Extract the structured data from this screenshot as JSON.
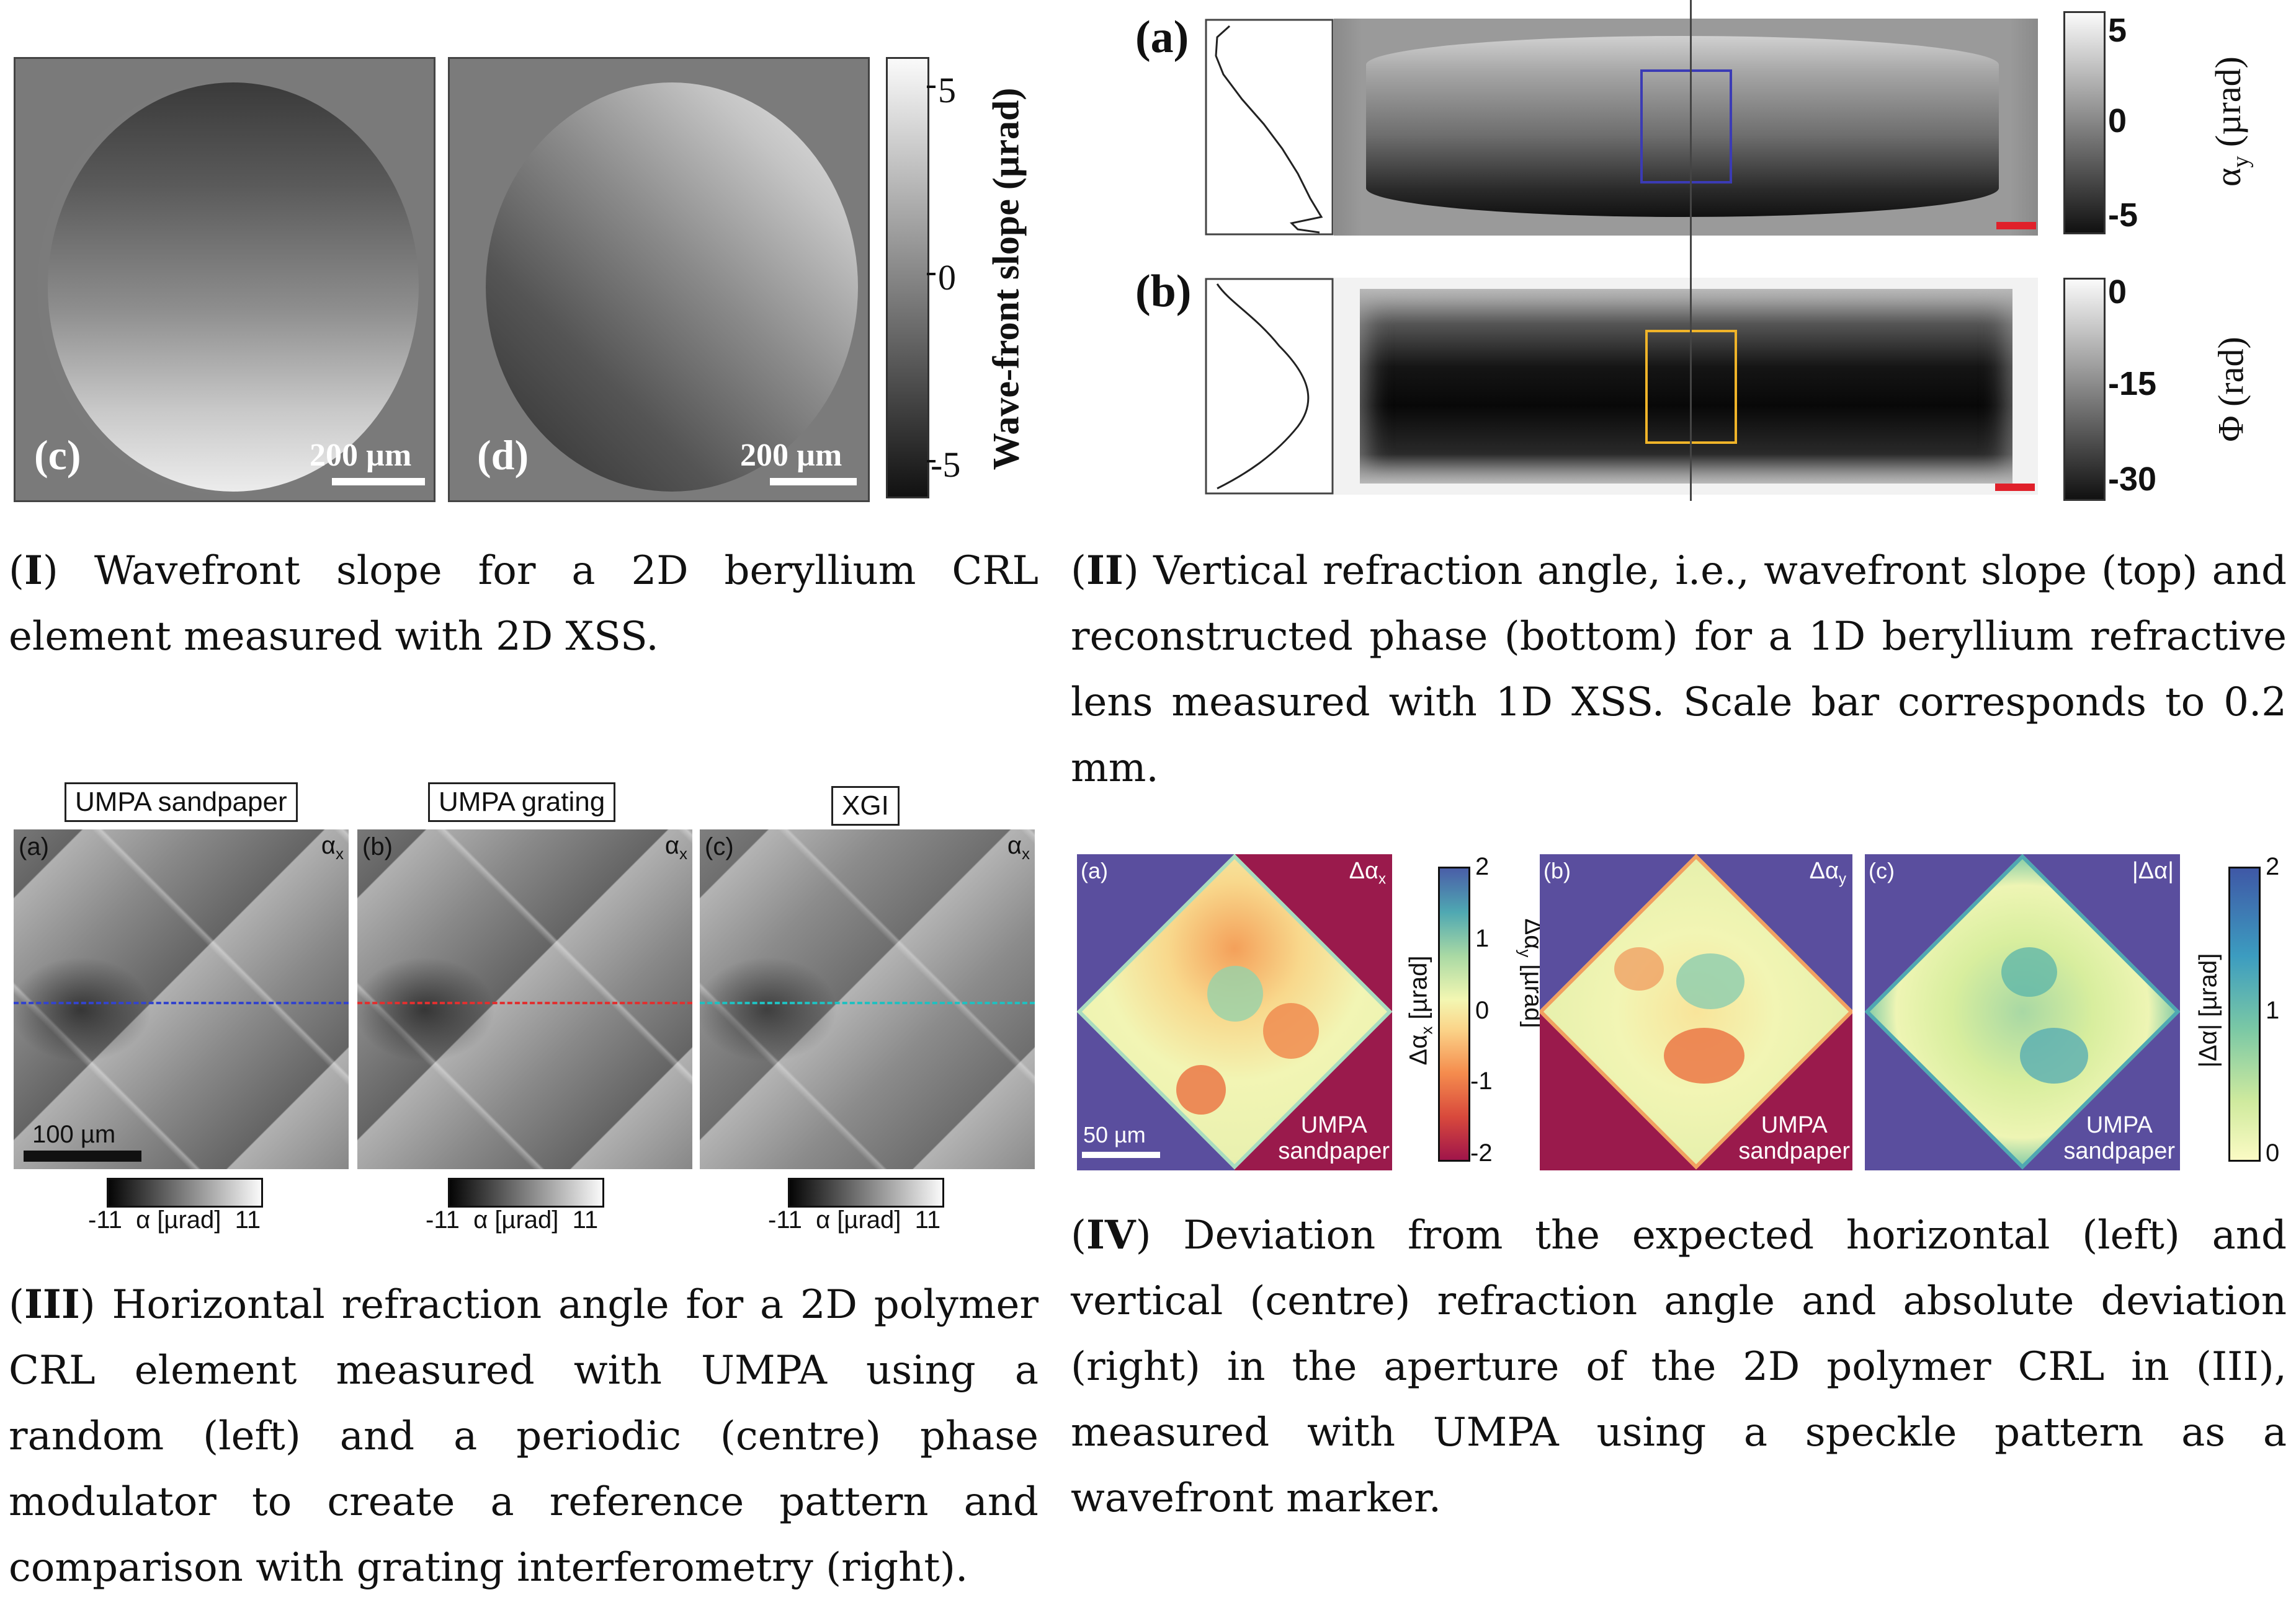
{
  "panel_I": {
    "label_c": "(c)",
    "label_d": "(d)",
    "scale_c": "200 µm",
    "scale_d": "200 µm",
    "colorbar": {
      "ticks": [
        "5",
        "0",
        "-5"
      ],
      "label": "Wave-front slope (µrad)"
    }
  },
  "panel_II": {
    "label_a": "(a)",
    "label_b": "(b)",
    "colorbar_a": {
      "ticks": [
        "5",
        "0",
        "-5"
      ],
      "label_main": "α",
      "label_sub": "y",
      "label_unit": " (µrad)"
    },
    "colorbar_b": {
      "ticks": [
        "0",
        "-15",
        "-30"
      ],
      "label": "Φ (rad)"
    },
    "box_color_a": "#3b3bb5",
    "box_color_b": "#f0b429",
    "scalebar_color": "#e0202a"
  },
  "panel_III": {
    "titles": [
      "UMPA sandpaper",
      "UMPA grating",
      "XGI"
    ],
    "labels": [
      "(a)",
      "(b)",
      "(c)"
    ],
    "alpha_main": "α",
    "alpha_sub": "x",
    "scalebar": "100 µm",
    "colorbar": {
      "min": "-11",
      "label": "α [µrad]",
      "max": "11"
    },
    "line_colors": [
      "#3344cc",
      "#e03030",
      "#20c0c0"
    ]
  },
  "panel_IV": {
    "labels": [
      "(a)",
      "(b)",
      "(c)"
    ],
    "corner_labels": [
      {
        "main": "Δα",
        "sub": "x"
      },
      {
        "main": "Δα",
        "sub": "y"
      },
      {
        "main": "|Δα|",
        "sub": ""
      }
    ],
    "umpa": "UMPA",
    "sandpaper": "sandpaper",
    "scalebar": "50 µm",
    "colorbar_a": {
      "ticks": [
        "2",
        "1",
        "0",
        "-1",
        "-2"
      ],
      "label_main": "Δα",
      "label_sub": "x",
      "label_unit": " [µrad]"
    },
    "colorbar_b_label": {
      "main": "Δα",
      "sub": "y",
      "unit": " [µrad]"
    },
    "colorbar_c": {
      "ticks": [
        "2",
        "1",
        "0"
      ],
      "label": "|Δα| [µrad]"
    },
    "bg_color": "#5a4e9e",
    "neg_color": "#9a1a4c"
  },
  "captions": {
    "I": {
      "num": "I",
      "text": ") Wavefront slope for a 2D beryllium CRL element measured with 2D XSS."
    },
    "II": {
      "num": "II",
      "text": ") Vertical refraction angle, i.e., wavefront slope (top) and reconstructed phase (bottom) for a 1D beryllium refractive lens measured with 1D XSS. Scale bar corresponds to 0.2 mm."
    },
    "III": {
      "num": "III",
      "text": ") Horizontal refraction angle for a 2D polymer CRL element measured with UMPA using a random (left) and a periodic (centre) phase modulator to create a reference pattern and comparison with grating interferometry (right)."
    },
    "IV": {
      "num": "IV",
      "text": ") Deviation from the expected horizontal (left) and vertical (centre) refraction angle and absolute deviation (right) in the aperture of the 2D polymer CRL in (III), measured with UMPA using a speckle pattern as a wavefront marker."
    }
  }
}
